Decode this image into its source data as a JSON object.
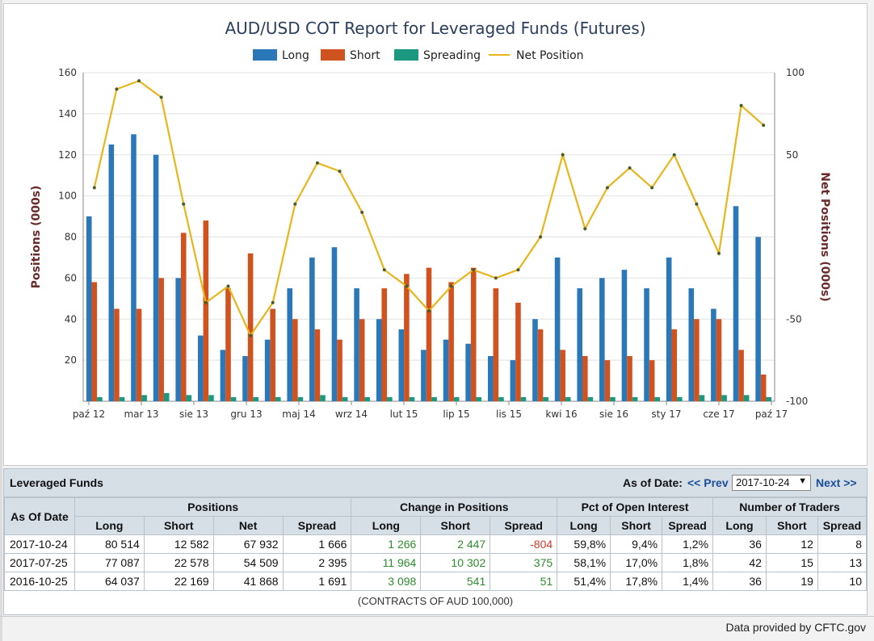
{
  "chart_data": {
    "type": "bar",
    "title": "AUD/USD COT Report for Leveraged Funds (Futures)",
    "ylabel": "Positions (000s)",
    "y2label": "Net Positions (000s)",
    "ylim": [
      0,
      160
    ],
    "y2lim": [
      -100,
      100
    ],
    "yticks": [
      20,
      40,
      60,
      80,
      100,
      120,
      140,
      160
    ],
    "y2ticks": [
      100,
      50,
      -50,
      -100
    ],
    "xtick_labels": [
      "paź 12",
      "mar 13",
      "sie 13",
      "gru 13",
      "maj 14",
      "wrz 14",
      "lut 15",
      "lip 15",
      "lis 15",
      "kwi 16",
      "sie 16",
      "sty 17",
      "cze 17",
      "paź 17"
    ],
    "legend": [
      "Long",
      "Short",
      "Spreading",
      "Net Position"
    ],
    "legend_position": "top-center",
    "grid": "horizontal",
    "colors": {
      "long": "#2a78b8",
      "short": "#d0521e",
      "spreading": "#1a9880",
      "net": "#e8b51a",
      "net_dot": "#4a5a2a"
    },
    "x": [
      "2012-10",
      "2012-12",
      "2013-02",
      "2013-04",
      "2013-06",
      "2013-08",
      "2013-10",
      "2013-12",
      "2014-02",
      "2014-04",
      "2014-06",
      "2014-08",
      "2014-10",
      "2014-12",
      "2015-02",
      "2015-04",
      "2015-06",
      "2015-08",
      "2015-10",
      "2015-12",
      "2016-02",
      "2016-04",
      "2016-06",
      "2016-08",
      "2016-10",
      "2016-12",
      "2017-02",
      "2017-04",
      "2017-06",
      "2017-08",
      "2017-10"
    ],
    "series": [
      {
        "name": "Long",
        "values": [
          90,
          125,
          130,
          120,
          60,
          32,
          25,
          22,
          30,
          55,
          70,
          75,
          55,
          40,
          35,
          25,
          30,
          28,
          22,
          20,
          40,
          70,
          55,
          60,
          64,
          55,
          70,
          55,
          45,
          95,
          80
        ]
      },
      {
        "name": "Short",
        "values": [
          58,
          45,
          45,
          60,
          82,
          88,
          55,
          72,
          45,
          40,
          35,
          30,
          40,
          55,
          62,
          65,
          58,
          65,
          55,
          48,
          35,
          25,
          22,
          20,
          22,
          20,
          35,
          40,
          40,
          25,
          13
        ]
      },
      {
        "name": "Spreading",
        "values": [
          2,
          2,
          3,
          4,
          3,
          3,
          2,
          2,
          2,
          2,
          3,
          2,
          2,
          2,
          2,
          2,
          2,
          2,
          2,
          2,
          2,
          2,
          2,
          2,
          2,
          2,
          2,
          3,
          3,
          3,
          2
        ]
      },
      {
        "name": "Net Position",
        "values": [
          30,
          90,
          95,
          85,
          20,
          -40,
          -30,
          -60,
          -40,
          20,
          45,
          40,
          15,
          -20,
          -30,
          -45,
          -30,
          -20,
          -25,
          -20,
          0,
          50,
          5,
          30,
          42,
          30,
          50,
          20,
          -10,
          80,
          68
        ]
      }
    ]
  },
  "table": {
    "title": "Leveraged Funds",
    "as_of_label": "As of Date:",
    "prev_label": "<< Prev",
    "next_label": "Next >>",
    "selected_date": "2017-10-24",
    "group_headers": [
      "As Of Date",
      "Positions",
      "Change in Positions",
      "Pct of Open Interest",
      "Number of Traders"
    ],
    "sub_headers": {
      "positions": [
        "Long",
        "Short",
        "Net",
        "Spread"
      ],
      "change": [
        "Long",
        "Short",
        "Spread"
      ],
      "pct": [
        "Long",
        "Short",
        "Spread"
      ],
      "traders": [
        "Long",
        "Short",
        "Spread"
      ]
    },
    "rows": [
      {
        "date": "2017-10-24",
        "pos_long": "80 514",
        "pos_short": "12 582",
        "pos_net": "67 932",
        "pos_spread": "1 666",
        "chg_long": "1 266",
        "chg_short": "2 447",
        "chg_spread": "-804",
        "pct_long": "59,8%",
        "pct_short": "9,4%",
        "pct_spread": "1,2%",
        "tr_long": "36",
        "tr_short": "12",
        "tr_spread": "8"
      },
      {
        "date": "2017-07-25",
        "pos_long": "77 087",
        "pos_short": "22 578",
        "pos_net": "54 509",
        "pos_spread": "2 395",
        "chg_long": "11 964",
        "chg_short": "10 302",
        "chg_spread": "375",
        "pct_long": "58,1%",
        "pct_short": "17,0%",
        "pct_spread": "1,8%",
        "tr_long": "42",
        "tr_short": "15",
        "tr_spread": "13"
      },
      {
        "date": "2016-10-25",
        "pos_long": "64 037",
        "pos_short": "22 169",
        "pos_net": "41 868",
        "pos_spread": "1 691",
        "chg_long": "3 098",
        "chg_short": "541",
        "chg_spread": "51",
        "pct_long": "51,4%",
        "pct_short": "17,8%",
        "pct_spread": "1,4%",
        "tr_long": "36",
        "tr_short": "19",
        "tr_spread": "10"
      }
    ],
    "units_note": "(CONTRACTS OF AUD 100,000)"
  },
  "footer": {
    "text": "Data provided by CFTC.gov"
  }
}
